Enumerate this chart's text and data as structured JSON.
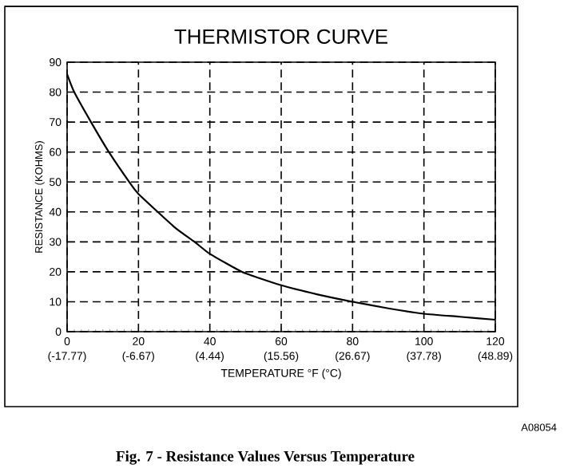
{
  "chart_data": {
    "type": "line",
    "title": "THERMISTOR CURVE",
    "xlabel": "TEMPERATURE °F (°C)",
    "ylabel": "RESISTANCE (KOHMS)",
    "x": [
      0,
      2,
      6.7,
      11.7,
      17.4,
      20,
      30,
      35.7,
      40,
      49,
      60,
      70,
      80,
      90,
      100,
      110,
      120
    ],
    "series": [
      {
        "color": "#000000",
        "values": [
          86,
          80,
          70,
          60,
          50,
          46,
          35,
          30,
          26,
          20,
          15.5,
          12.5,
          10,
          7.8,
          6,
          5,
          4
        ]
      }
    ],
    "xlim": [
      0,
      120
    ],
    "ylim": [
      0,
      90
    ],
    "xticks": [
      0,
      20,
      40,
      60,
      80,
      100,
      120
    ],
    "x2lim": [
      -17.77,
      48.89
    ],
    "x2ticks": [
      {
        "value": -17.77,
        "label": "(-17.77)"
      },
      {
        "value": -6.67,
        "label": "(-6.67)"
      },
      {
        "value": 4.44,
        "label": "(4.44)"
      },
      {
        "value": 15.56,
        "label": "(15.56)"
      },
      {
        "value": 26.67,
        "label": "(26.67)"
      },
      {
        "value": 37.78,
        "label": "(37.78)"
      },
      {
        "value": 48.89,
        "label": "(48.89)"
      }
    ],
    "yticks": [
      0,
      10,
      20,
      30,
      40,
      50,
      60,
      70,
      80,
      90
    ],
    "grid": true,
    "annotations": [
      "A08054",
      "Fig. 7 - Resistance Values Versus Temperature"
    ]
  }
}
